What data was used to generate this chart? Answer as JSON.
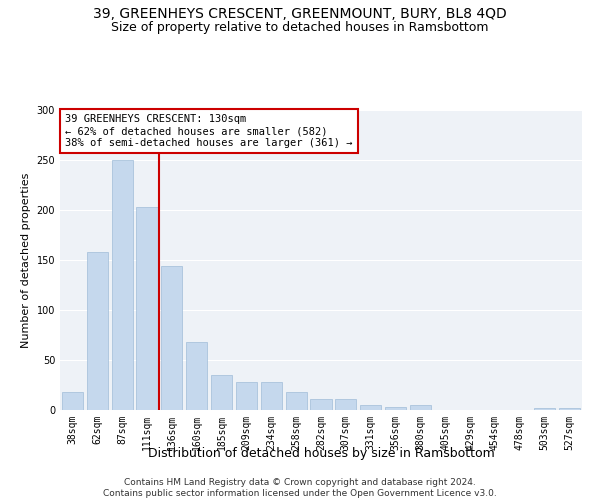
{
  "title": "39, GREENHEYS CRESCENT, GREENMOUNT, BURY, BL8 4QD",
  "subtitle": "Size of property relative to detached houses in Ramsbottom",
  "xlabel": "Distribution of detached houses by size in Ramsbottom",
  "ylabel": "Number of detached properties",
  "categories": [
    "38sqm",
    "62sqm",
    "87sqm",
    "111sqm",
    "136sqm",
    "160sqm",
    "185sqm",
    "209sqm",
    "234sqm",
    "258sqm",
    "282sqm",
    "307sqm",
    "331sqm",
    "356sqm",
    "380sqm",
    "405sqm",
    "429sqm",
    "454sqm",
    "478sqm",
    "503sqm",
    "527sqm"
  ],
  "values": [
    18,
    158,
    250,
    203,
    144,
    68,
    35,
    28,
    28,
    18,
    11,
    11,
    5,
    3,
    5,
    0,
    0,
    0,
    0,
    2,
    2
  ],
  "bar_color": "#c5d8ed",
  "bar_edgecolor": "#a0bcd8",
  "vline_color": "#cc0000",
  "vline_x_index": 4,
  "annotation_text": "39 GREENHEYS CRESCENT: 130sqm\n← 62% of detached houses are smaller (582)\n38% of semi-detached houses are larger (361) →",
  "annotation_box_facecolor": "white",
  "annotation_box_edgecolor": "#cc0000",
  "ylim": [
    0,
    300
  ],
  "yticks": [
    0,
    50,
    100,
    150,
    200,
    250,
    300
  ],
  "background_color": "#eef2f7",
  "grid_color": "white",
  "footer": "Contains HM Land Registry data © Crown copyright and database right 2024.\nContains public sector information licensed under the Open Government Licence v3.0.",
  "title_fontsize": 10,
  "subtitle_fontsize": 9,
  "xlabel_fontsize": 9,
  "ylabel_fontsize": 8,
  "tick_fontsize": 7,
  "annotation_fontsize": 7.5,
  "footer_fontsize": 6.5
}
